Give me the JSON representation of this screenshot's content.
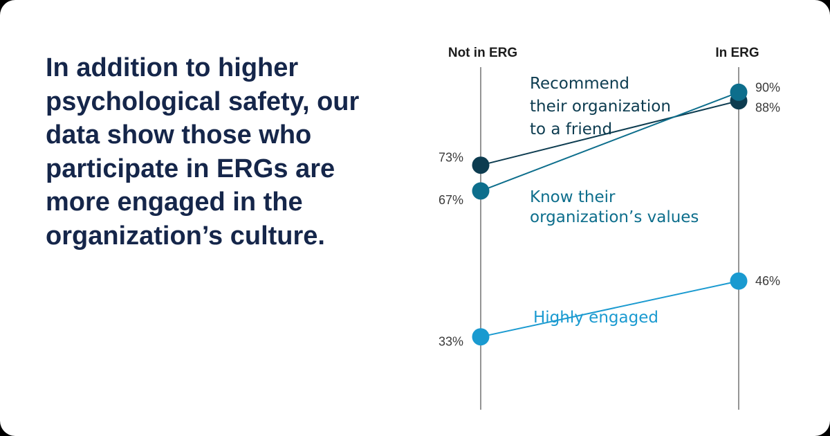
{
  "headline": "In addition to higher psychological safety, our data show those who participate in ERGs are more engaged in the organization’s culture.",
  "chart_data": {
    "type": "line",
    "categories": [
      "Not in ERG",
      "In ERG"
    ],
    "series": [
      {
        "name": "Recommend their organization to a friend",
        "values": [
          73,
          88
        ],
        "value_labels": [
          "73%",
          "88%"
        ],
        "color": "#0d3c50",
        "label_lines": [
          "Recommend",
          "their organization",
          "to a friend"
        ]
      },
      {
        "name": "Know their organization’s values",
        "values": [
          67,
          90
        ],
        "value_labels": [
          "67%",
          "90%"
        ],
        "color": "#0d6e8c",
        "label_lines": [
          "Know their",
          "organization’s values"
        ]
      },
      {
        "name": "Highly engaged",
        "values": [
          33,
          46
        ],
        "value_labels": [
          "33%",
          "46%"
        ],
        "color": "#1a9ad0",
        "label_lines": [
          "Highly engaged"
        ]
      }
    ],
    "axis_line_color": "#7a7a7a"
  }
}
